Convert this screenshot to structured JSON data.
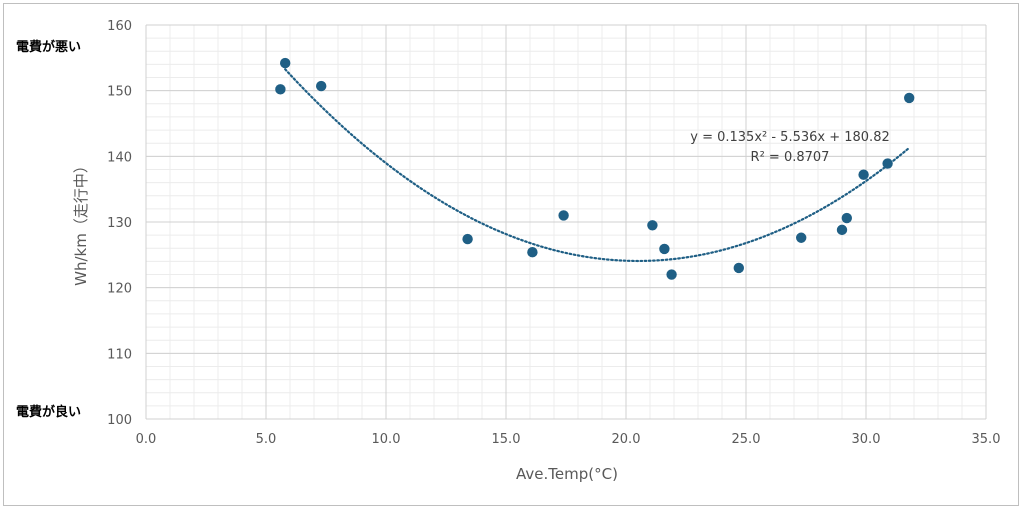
{
  "chart_data": {
    "type": "scatter",
    "title": "",
    "xlabel": "Ave.Temp(°C)",
    "ylabel": "Wh/km（走行中）",
    "xlim": [
      0,
      35
    ],
    "ylim": [
      100,
      160
    ],
    "x_ticks": [
      "0.0",
      "5.0",
      "10.0",
      "15.0",
      "20.0",
      "25.0",
      "30.0",
      "35.0"
    ],
    "y_ticks": [
      "100",
      "110",
      "120",
      "130",
      "140",
      "150",
      "160"
    ],
    "x_step": 5,
    "y_step": 10,
    "x_minor_step": 1,
    "y_minor_step": 2,
    "grid": true,
    "marker_color": "#1f5f85",
    "trendline_color": "#1f5f85",
    "points": [
      {
        "x": 5.6,
        "y": 150.2
      },
      {
        "x": 5.8,
        "y": 154.2
      },
      {
        "x": 7.3,
        "y": 150.7
      },
      {
        "x": 13.4,
        "y": 127.4
      },
      {
        "x": 16.1,
        "y": 125.4
      },
      {
        "x": 17.4,
        "y": 131.0
      },
      {
        "x": 21.1,
        "y": 129.5
      },
      {
        "x": 21.6,
        "y": 125.9
      },
      {
        "x": 21.9,
        "y": 122.0
      },
      {
        "x": 24.7,
        "y": 123.0
      },
      {
        "x": 27.3,
        "y": 127.6
      },
      {
        "x": 29.0,
        "y": 128.8
      },
      {
        "x": 29.2,
        "y": 130.6
      },
      {
        "x": 29.9,
        "y": 137.2
      },
      {
        "x": 30.9,
        "y": 138.9
      },
      {
        "x": 31.8,
        "y": 148.9
      }
    ],
    "trendline": {
      "type": "polynomial",
      "coefficients": [
        0.135,
        -5.536,
        180.82
      ],
      "x_range": [
        5.8,
        31.8
      ],
      "equation_text": "y = 0.135x² - 5.536x + 180.82",
      "r2_text": "R² = 0.8707"
    },
    "annotations": {
      "top_left": "電費が悪い",
      "bottom_left": "電費が良い"
    }
  }
}
